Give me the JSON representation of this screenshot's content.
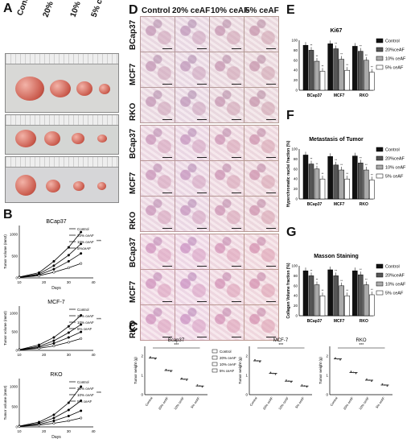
{
  "panels": {
    "A": "A",
    "B": "B",
    "C": "C",
    "D": "D",
    "E": "E",
    "F": "F",
    "G": "G"
  },
  "groups": [
    "Control",
    "20% ceAF",
    "10% ceAF",
    "5% ceAF"
  ],
  "legend_b": [
    "Control",
    "20% ceAF",
    "10% ceAF",
    "5%ceAF"
  ],
  "legend_bar": [
    "Control",
    "20%ceAF",
    "10% ceAF",
    "5% ceAF"
  ],
  "cell_lines": [
    "BCap37",
    "MCF7",
    "RKO"
  ],
  "colors": {
    "control": "#111111",
    "c20": "#555555",
    "c10": "#aaaaaa",
    "c5": "#ffffff"
  },
  "growth": {
    "ylabel": "Tumor volume (mm3)",
    "xlabel": "Days",
    "titles": [
      "BCap37",
      "MCF-7",
      "RKO"
    ]
  },
  "weight": {
    "ylabel": "Tumor weight (g)",
    "titles": [
      "Bcap37",
      "MCF-7",
      "RKO"
    ],
    "sig": "***"
  },
  "chart_data": [
    {
      "type": "line",
      "title": "BCap37",
      "xlabel": "Days",
      "ylabel": "Tumor volume (mm3)",
      "x": [
        10,
        18,
        24,
        30,
        35
      ],
      "series": [
        {
          "name": "Control",
          "values": [
            20,
            120,
            380,
            700,
            1050
          ]
        },
        {
          "name": "20% ceAF",
          "values": [
            15,
            90,
            280,
            520,
            780
          ]
        },
        {
          "name": "10% ceAF",
          "values": [
            12,
            70,
            200,
            380,
            560
          ]
        },
        {
          "name": "5%ceAF",
          "values": [
            10,
            50,
            130,
            230,
            330
          ]
        }
      ]
    },
    {
      "type": "line",
      "title": "MCF-7",
      "ylabel": "Tumor volume (mm3)",
      "x": [
        10,
        18,
        24,
        30,
        35
      ],
      "series": [
        {
          "name": "Control",
          "values": [
            20,
            150,
            350,
            650,
            950
          ]
        },
        {
          "name": "20% ceAF",
          "values": [
            15,
            110,
            260,
            480,
            700
          ]
        },
        {
          "name": "10% ceAF",
          "values": [
            12,
            80,
            190,
            350,
            500
          ]
        },
        {
          "name": "5% ceAF",
          "values": [
            10,
            55,
            120,
            220,
            320
          ]
        }
      ]
    },
    {
      "type": "line",
      "title": "RKO",
      "xlabel": "Days",
      "ylabel": "Tumor volume (mm3)",
      "x": [
        10,
        18,
        24,
        30,
        35
      ],
      "series": [
        {
          "name": "Control",
          "values": [
            20,
            120,
            300,
            600,
            1000
          ]
        },
        {
          "name": "20% ceAF",
          "values": [
            15,
            90,
            220,
            420,
            650
          ]
        },
        {
          "name": "10% ceAF",
          "values": [
            12,
            65,
            150,
            270,
            400
          ]
        },
        {
          "name": "5% ceAF",
          "values": [
            10,
            45,
            90,
            150,
            220
          ]
        }
      ]
    },
    {
      "type": "bar",
      "title": "Ki67",
      "categories": [
        "BCap37",
        "MCF7",
        "RKO"
      ],
      "ylim": [
        0,
        100
      ],
      "series": [
        {
          "name": "Control",
          "values": [
            90,
            93,
            88
          ]
        },
        {
          "name": "20%ceAF",
          "values": [
            80,
            83,
            78
          ]
        },
        {
          "name": "10% ceAF",
          "values": [
            58,
            62,
            60
          ]
        },
        {
          "name": "5% ceAF",
          "values": [
            38,
            40,
            36
          ]
        }
      ]
    },
    {
      "type": "bar",
      "title": "Metastasis of Tumor",
      "ylabel": "Hyperchromatic nuclei fraction (%)",
      "categories": [
        "BCap37",
        "MCF7",
        "RKO"
      ],
      "ylim": [
        0,
        100
      ],
      "series": [
        {
          "name": "Control",
          "values": [
            88,
            85,
            86
          ]
        },
        {
          "name": "20%ceAF",
          "values": [
            70,
            68,
            72
          ]
        },
        {
          "name": "10% ceAF",
          "values": [
            60,
            58,
            58
          ]
        },
        {
          "name": "5% ceAF",
          "values": [
            40,
            40,
            38
          ]
        }
      ]
    },
    {
      "type": "bar",
      "title": "Masson Staining",
      "ylabel": "Collagen Volume fraction (%)",
      "categories": [
        "BCap37",
        "MCF7",
        "RKO"
      ],
      "ylim": [
        0,
        100
      ],
      "series": [
        {
          "name": "Control",
          "values": [
            90,
            92,
            90
          ]
        },
        {
          "name": "20%ceAF",
          "values": [
            80,
            80,
            82
          ]
        },
        {
          "name": "10% ceAF",
          "values": [
            62,
            60,
            62
          ]
        },
        {
          "name": "5% ceAF",
          "values": [
            40,
            40,
            42
          ]
        }
      ]
    },
    {
      "type": "scatter",
      "title": "Bcap37",
      "ylabel": "Tumor weight (g)",
      "categories": [
        "Control",
        "20% ceAF",
        "10% ceAF",
        "5% ceAF"
      ],
      "ylim": [
        0,
        2.5
      ],
      "values": [
        1.9,
        1.25,
        0.8,
        0.45
      ]
    },
    {
      "type": "scatter",
      "title": "MCF-7",
      "ylabel": "Tumor weight (g)",
      "categories": [
        "Control",
        "20% ceAF",
        "10% ceAF",
        "5% ceAF"
      ],
      "ylim": [
        0,
        2.5
      ],
      "values": [
        1.75,
        1.1,
        0.7,
        0.45
      ]
    },
    {
      "type": "scatter",
      "title": "RKO",
      "ylabel": "Tumor weight (g)",
      "categories": [
        "Control",
        "20% ceAF",
        "10% ceAF",
        "5% ceAF"
      ],
      "ylim": [
        0,
        2.5
      ],
      "values": [
        1.85,
        1.15,
        0.75,
        0.5
      ]
    }
  ]
}
